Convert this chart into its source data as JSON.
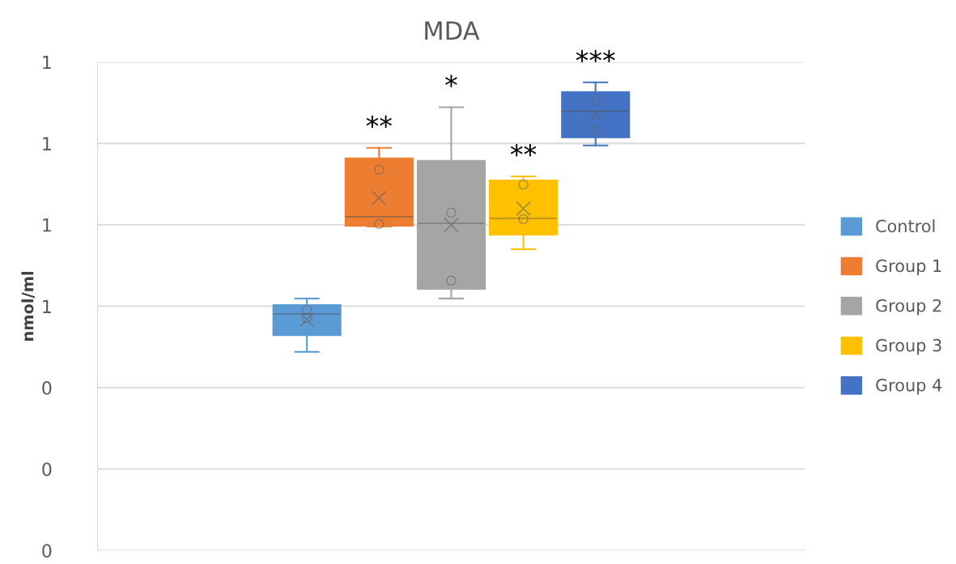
{
  "chart_data": {
    "type": "box",
    "title": "MDA",
    "ylabel": "nmol/ml",
    "categories": [
      null
    ],
    "series": [
      {
        "name": "Control",
        "color": "#5b9bd5",
        "boxes": [
          {
            "low": 0.488,
            "q1": 0.529,
            "median": 0.581,
            "q3": 0.603,
            "high": 0.619,
            "mean": 0.567,
            "outliers": [
              0.591,
              0.571
            ]
          }
        ]
      },
      {
        "name": "Group 1",
        "color": "#ed7d31",
        "boxes": [
          {
            "low": 0.796,
            "q1": 0.798,
            "median": 0.82,
            "q3": 0.963,
            "high": 0.989,
            "mean": 0.866,
            "outliers": [
              0.935,
              0.802
            ]
          }
        ]
      },
      {
        "name": "Group 2",
        "color": "#a5a5a5",
        "boxes": [
          {
            "low": 0.619,
            "q1": 0.643,
            "median": 0.804,
            "q3": 0.957,
            "high": 1.089,
            "mean": 0.8,
            "outliers": [
              0.83,
              0.663
            ]
          }
        ]
      },
      {
        "name": "Group 3",
        "color": "#ffc000",
        "boxes": [
          {
            "low": 0.74,
            "q1": 0.776,
            "median": 0.816,
            "q3": 0.909,
            "high": 0.919,
            "mean": 0.84,
            "outliers": [
              0.899,
              0.814
            ]
          }
        ]
      },
      {
        "name": "Group 4",
        "color": "#4472c4",
        "boxes": [
          {
            "low": 0.995,
            "q1": 1.015,
            "median": 1.079,
            "q3": 1.126,
            "high": 1.15,
            "mean": 1.071,
            "outliers": [
              1.104,
              1.033
            ]
          }
        ]
      }
    ],
    "ylim": [
      0,
      1.2
    ],
    "yticks": [
      {
        "value": 0,
        "label": "0"
      },
      {
        "value": 0.2,
        "label": "0"
      },
      {
        "value": 0.4,
        "label": "0"
      },
      {
        "value": 0.6,
        "label": "1"
      },
      {
        "value": 0.8,
        "label": "1"
      },
      {
        "value": 1.0,
        "label": "1"
      },
      {
        "value": 1.2,
        "label": "1"
      }
    ],
    "annotations": [
      "**",
      "*",
      "**",
      "***"
    ],
    "grid": "y",
    "legend": "right"
  }
}
